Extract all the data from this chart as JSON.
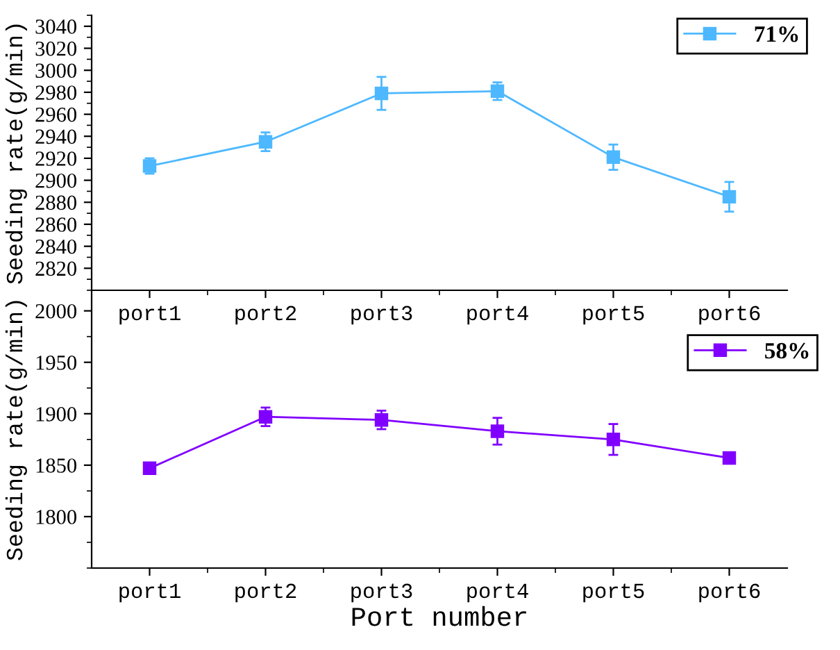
{
  "chart_data": [
    {
      "type": "line",
      "ylabel": "Seeding rate(g/min)",
      "categories": [
        "port1",
        "port2",
        "port3",
        "port4",
        "port5",
        "port6"
      ],
      "ylim": [
        2800,
        3050
      ],
      "yticks": [
        2820,
        2840,
        2860,
        2880,
        2900,
        2920,
        2940,
        2960,
        2980,
        3000,
        3020,
        3040
      ],
      "marker": "square",
      "legend": "top right",
      "series": [
        {
          "name": "71%",
          "color": "#4db8ff",
          "values": [
            2913,
            2935,
            2979,
            2981,
            2921,
            2885
          ],
          "errors": [
            7,
            8.5,
            15,
            8,
            11.5,
            13.5
          ]
        }
      ]
    },
    {
      "type": "line",
      "ylabel": "Seeding rate(g/min)",
      "xlabel": "Port number",
      "categories": [
        "port1",
        "port2",
        "port3",
        "port4",
        "port5",
        "port6"
      ],
      "ylim": [
        1750,
        2020
      ],
      "yticks": [
        1800,
        1850,
        1900,
        1950,
        2000
      ],
      "marker": "square",
      "legend": "right",
      "series": [
        {
          "name": "58%",
          "color": "#8000ff",
          "values": [
            1847,
            1897,
            1894,
            1883,
            1875,
            1857
          ],
          "errors": [
            4.5,
            9,
            9,
            13,
            15,
            4
          ]
        }
      ]
    }
  ]
}
